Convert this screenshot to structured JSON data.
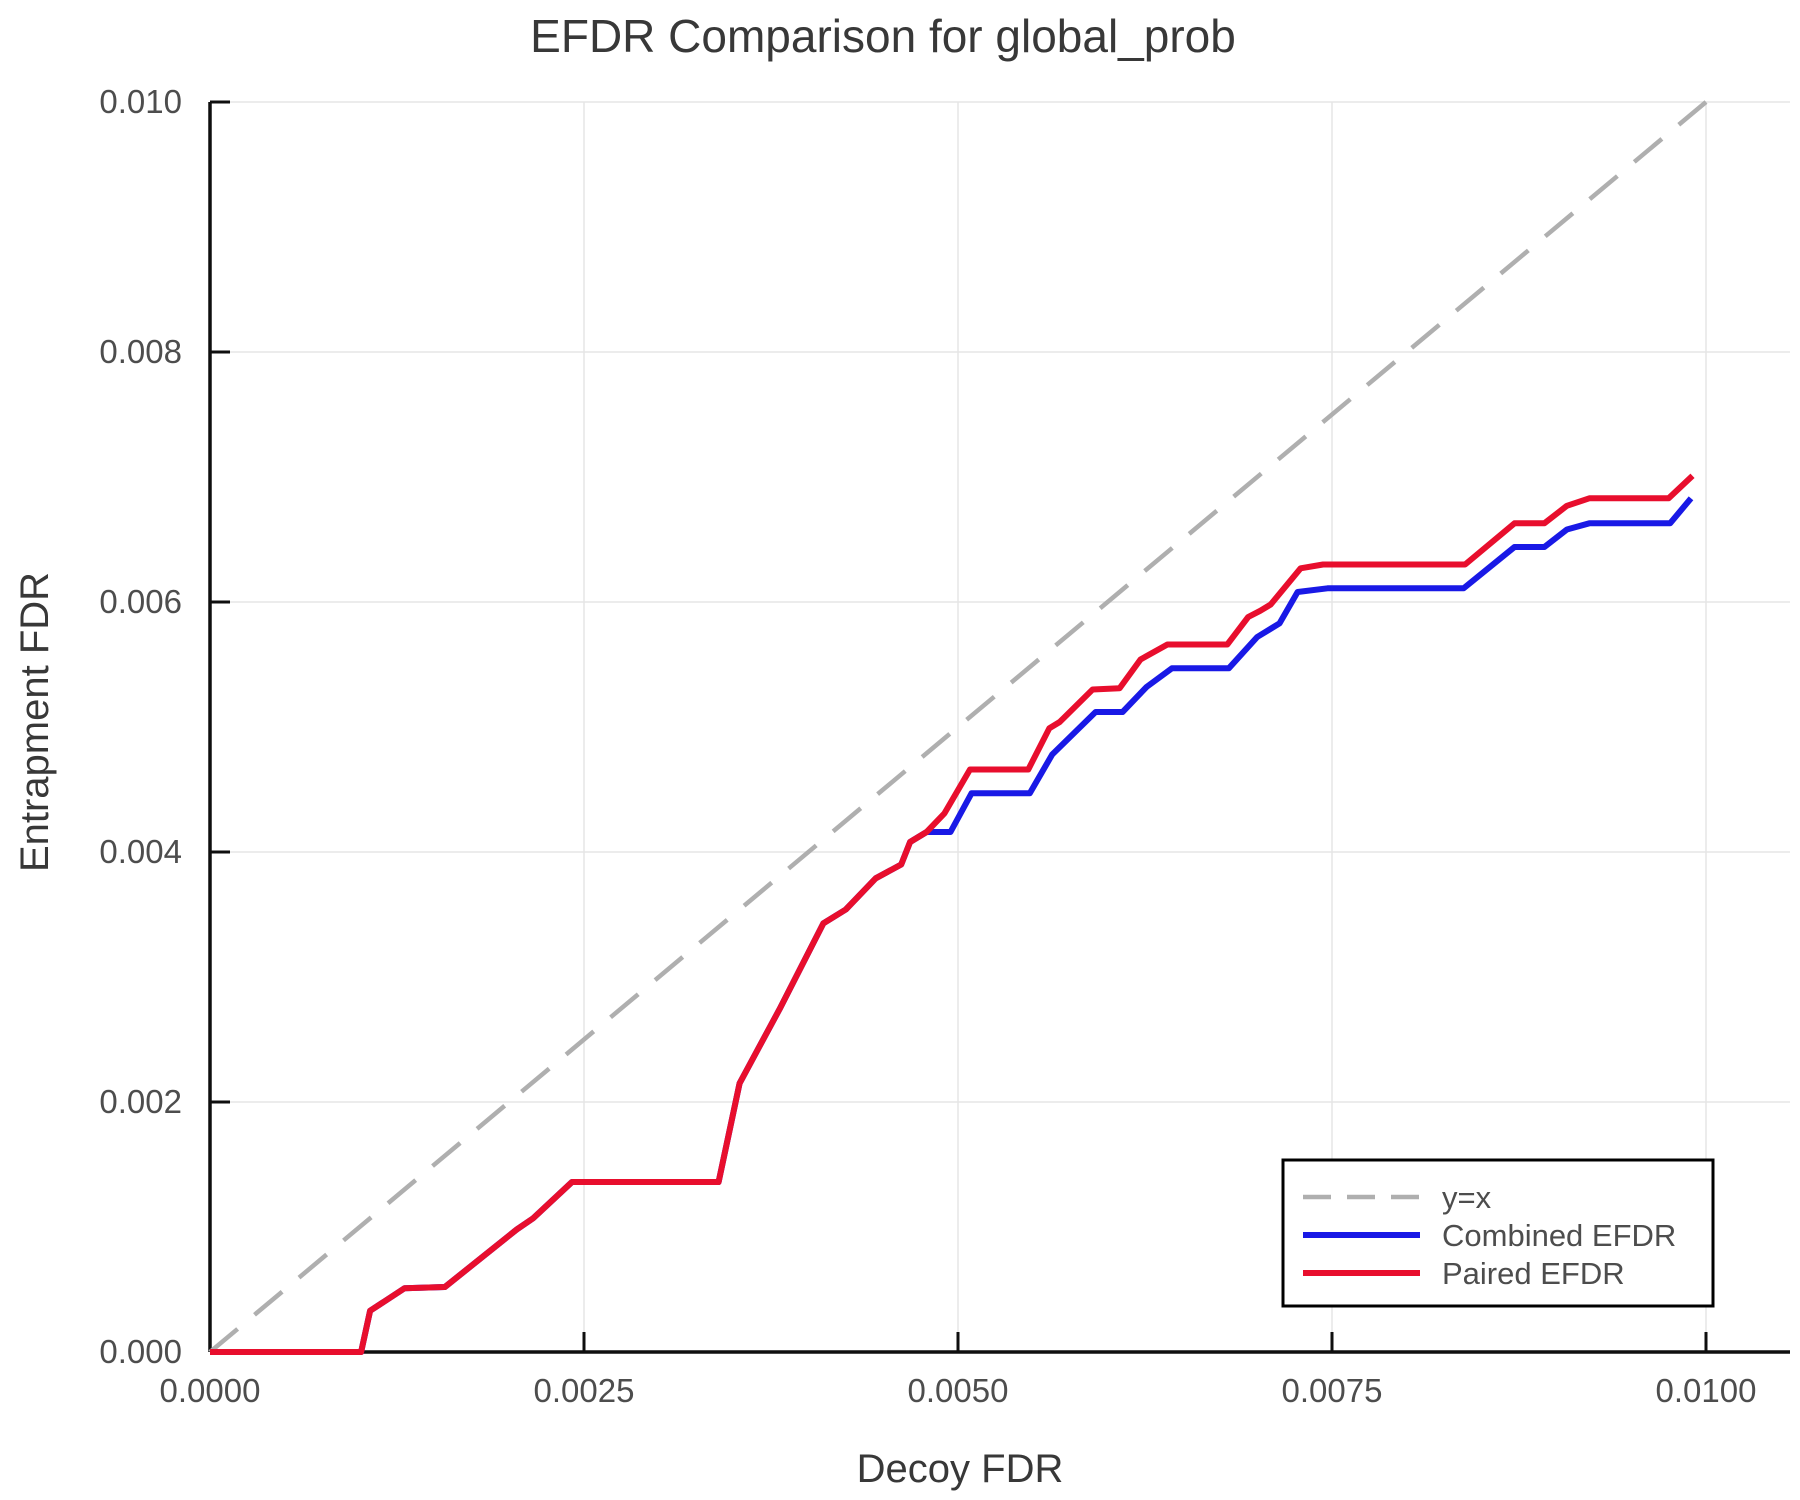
{
  "chart_data": {
    "type": "line",
    "title": "EFDR Comparison for global_prob",
    "xlabel": "Decoy FDR",
    "ylabel": "Entrapment FDR",
    "xlim": [
      0.0,
      0.0105
    ],
    "ylim": [
      0.0,
      0.01
    ],
    "grid": true,
    "legend_position": "bottom-right",
    "x_ticks": {
      "values": [
        0.0,
        0.0025,
        0.005,
        0.0075,
        0.01
      ],
      "labels": [
        "0.0000",
        "0.0025",
        "0.0050",
        "0.0075",
        "0.0100"
      ]
    },
    "y_ticks": {
      "values": [
        0.0,
        0.002,
        0.004,
        0.006,
        0.008,
        0.01
      ],
      "labels": [
        "0.000",
        "0.002",
        "0.004",
        "0.006",
        "0.008",
        "0.010"
      ]
    },
    "colors": {
      "grid": "#e5e5e5",
      "spine": "#0f0f0f",
      "reference": "#afafaf",
      "combined": "#1919e6",
      "paired": "#e80e2d",
      "legend_border": "#000000",
      "legend_fill": "#ffffff"
    },
    "series": [
      {
        "name": "y=x",
        "style": "dashed",
        "color": "#afafaf",
        "width": 4.5,
        "points": [
          [
            0.0,
            0.0
          ],
          [
            0.01,
            0.01
          ]
        ]
      },
      {
        "name": "Combined EFDR",
        "style": "solid",
        "color": "#1919e6",
        "width": 6,
        "points": [
          [
            0.0,
            0.0
          ],
          [
            0.00101,
            0.0
          ],
          [
            0.00107,
            0.00033
          ],
          [
            0.0013,
            0.00051
          ],
          [
            0.00157,
            0.00052
          ],
          [
            0.00205,
            0.00098
          ],
          [
            0.00216,
            0.00107
          ],
          [
            0.00242,
            0.00136
          ],
          [
            0.0034,
            0.00136
          ],
          [
            0.00354,
            0.00215
          ],
          [
            0.00381,
            0.00275
          ],
          [
            0.0041,
            0.00343
          ],
          [
            0.00425,
            0.00354
          ],
          [
            0.00445,
            0.00379
          ],
          [
            0.00462,
            0.0039
          ],
          [
            0.00468,
            0.00408
          ],
          [
            0.00479,
            0.00416
          ],
          [
            0.00495,
            0.00416
          ],
          [
            0.00509,
            0.00447
          ],
          [
            0.00548,
            0.00447
          ],
          [
            0.00563,
            0.00478
          ],
          [
            0.00592,
            0.00512
          ],
          [
            0.0061,
            0.00512
          ],
          [
            0.00626,
            0.00532
          ],
          [
            0.00643,
            0.00547
          ],
          [
            0.00681,
            0.00547
          ],
          [
            0.007,
            0.00572
          ],
          [
            0.00715,
            0.00583
          ],
          [
            0.00727,
            0.00608
          ],
          [
            0.00747,
            0.00611
          ],
          [
            0.00838,
            0.00611
          ],
          [
            0.00872,
            0.00644
          ],
          [
            0.00892,
            0.00644
          ],
          [
            0.00907,
            0.00658
          ],
          [
            0.00922,
            0.00663
          ],
          [
            0.00976,
            0.00663
          ],
          [
            0.0099,
            0.00683
          ]
        ]
      },
      {
        "name": "Paired EFDR",
        "style": "solid",
        "color": "#e80e2d",
        "width": 6,
        "points": [
          [
            0.0,
            0.0
          ],
          [
            0.00101,
            0.0
          ],
          [
            0.00107,
            0.00033
          ],
          [
            0.0013,
            0.00051
          ],
          [
            0.00157,
            0.00052
          ],
          [
            0.00205,
            0.00098
          ],
          [
            0.00216,
            0.00107
          ],
          [
            0.00242,
            0.00136
          ],
          [
            0.0034,
            0.00136
          ],
          [
            0.00354,
            0.00215
          ],
          [
            0.00381,
            0.00275
          ],
          [
            0.0041,
            0.00343
          ],
          [
            0.00425,
            0.00354
          ],
          [
            0.00445,
            0.00379
          ],
          [
            0.00462,
            0.0039
          ],
          [
            0.00468,
            0.00408
          ],
          [
            0.00479,
            0.00416
          ],
          [
            0.00491,
            0.00431
          ],
          [
            0.00508,
            0.00466
          ],
          [
            0.00547,
            0.00466
          ],
          [
            0.00561,
            0.00499
          ],
          [
            0.00568,
            0.00504
          ],
          [
            0.0059,
            0.0053
          ],
          [
            0.00608,
            0.00531
          ],
          [
            0.00622,
            0.00554
          ],
          [
            0.0064,
            0.00566
          ],
          [
            0.0068,
            0.00566
          ],
          [
            0.00694,
            0.00588
          ],
          [
            0.00702,
            0.00593
          ],
          [
            0.00709,
            0.00598
          ],
          [
            0.00729,
            0.00627
          ],
          [
            0.00744,
            0.0063
          ],
          [
            0.00839,
            0.0063
          ],
          [
            0.00872,
            0.00663
          ],
          [
            0.00892,
            0.00663
          ],
          [
            0.00907,
            0.00677
          ],
          [
            0.00922,
            0.00683
          ],
          [
            0.00975,
            0.00683
          ],
          [
            0.00991,
            0.00701
          ]
        ]
      }
    ]
  }
}
